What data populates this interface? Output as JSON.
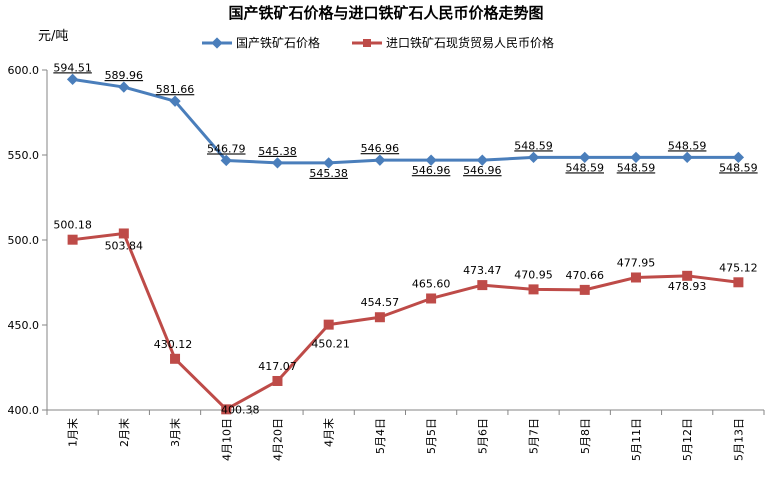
{
  "chart_data": {
    "type": "line",
    "title": "国产铁矿石价格与进口铁矿石人民币价格走势图",
    "ylabel": "元/吨",
    "ylim": [
      400,
      600
    ],
    "yticks": [
      "400.0",
      "450.0",
      "500.0",
      "550.0",
      "600.0"
    ],
    "grid": false,
    "legend_position": "top",
    "categories": [
      "1月末",
      "2月末",
      "3月末",
      "4月10日",
      "4月20日",
      "4月末",
      "5月4日",
      "5月5日",
      "5月6日",
      "5月7日",
      "5月8日",
      "5月11日",
      "5月12日",
      "5月13日"
    ],
    "series": [
      {
        "name": "国产铁矿石价格",
        "color": "#4a7ebb",
        "marker": "diamond",
        "values": [
          594.51,
          589.96,
          581.66,
          546.79,
          545.38,
          545.38,
          546.96,
          546.96,
          546.96,
          548.59,
          548.59,
          548.59,
          548.59,
          548.59
        ],
        "labels": [
          "594.51",
          "589.96",
          "581.66",
          "546.79",
          "545.38",
          "545.38",
          "546.96",
          "546.96",
          "546.96",
          "548.59",
          "548.59",
          "548.59",
          "548.59",
          "548.59"
        ]
      },
      {
        "name": "进口铁矿石现货贸易人民币价格",
        "color": "#be4b48",
        "marker": "square",
        "values": [
          500.18,
          503.84,
          430.12,
          400.38,
          417.07,
          450.21,
          454.57,
          465.6,
          473.47,
          470.95,
          470.66,
          477.95,
          478.93,
          475.12
        ],
        "labels": [
          "500.18",
          "503.84",
          "430.12",
          "400.38",
          "417.07",
          "450.21",
          "454.57",
          "465.60",
          "473.47",
          "470.95",
          "470.66",
          "477.95",
          "478.93",
          "475.12"
        ]
      }
    ]
  }
}
